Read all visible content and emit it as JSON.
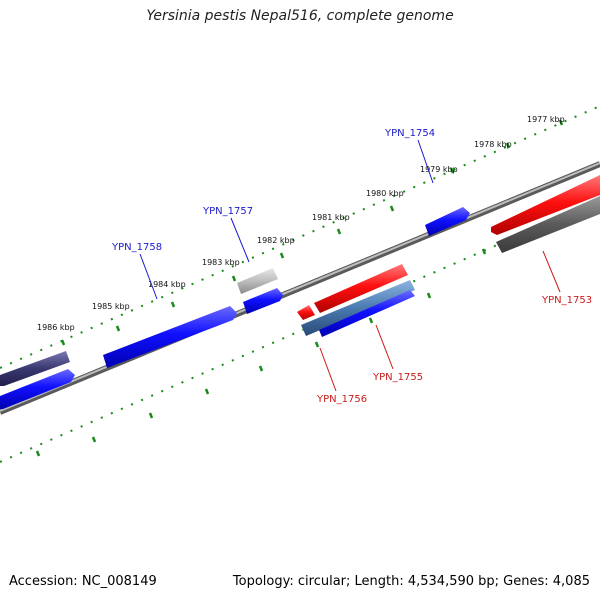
{
  "title": "Yersinia pestis Nepal516, complete genome",
  "footer": {
    "accession": "Accession: NC_008149",
    "summary": "Topology: circular; Length: 4,534,590 bp; Genes: 4,085"
  },
  "colors": {
    "forward_gene": "#1a1aff",
    "reverse_gene": "#ff1a1a",
    "pseudo_gene": "#5a5a5a",
    "light_gene": "#b8b8b8",
    "steel_gene": "#4a7ab0",
    "dark_purple_gene": "#3a3870",
    "tick_marks": "#1a8a1a",
    "backbone": "#8a8a8a",
    "label_forward": "#1a1acc",
    "label_reverse": "#cc1a1a"
  },
  "ticks": [
    {
      "label": "1977 kbp"
    },
    {
      "label": "1978 kbp"
    },
    {
      "label": "1979 kbp"
    },
    {
      "label": "1980 kbp"
    },
    {
      "label": "1981 kbp"
    },
    {
      "label": "1982 kbp"
    },
    {
      "label": "1983 kbp"
    },
    {
      "label": "1984 kbp"
    },
    {
      "label": "1985 kbp"
    },
    {
      "label": "1986 kbp"
    }
  ],
  "gene_labels": [
    {
      "id": "ypn1754",
      "text": "YPN_1754",
      "strand": "forward"
    },
    {
      "id": "ypn1757",
      "text": "YPN_1757",
      "strand": "forward"
    },
    {
      "id": "ypn1758",
      "text": "YPN_1758",
      "strand": "forward"
    },
    {
      "id": "ypn1753",
      "text": "YPN_1753",
      "strand": "reverse"
    },
    {
      "id": "ypn1755",
      "text": "YPN_1755",
      "strand": "reverse"
    },
    {
      "id": "ypn1756",
      "text": "YPN_1756",
      "strand": "reverse"
    }
  ]
}
